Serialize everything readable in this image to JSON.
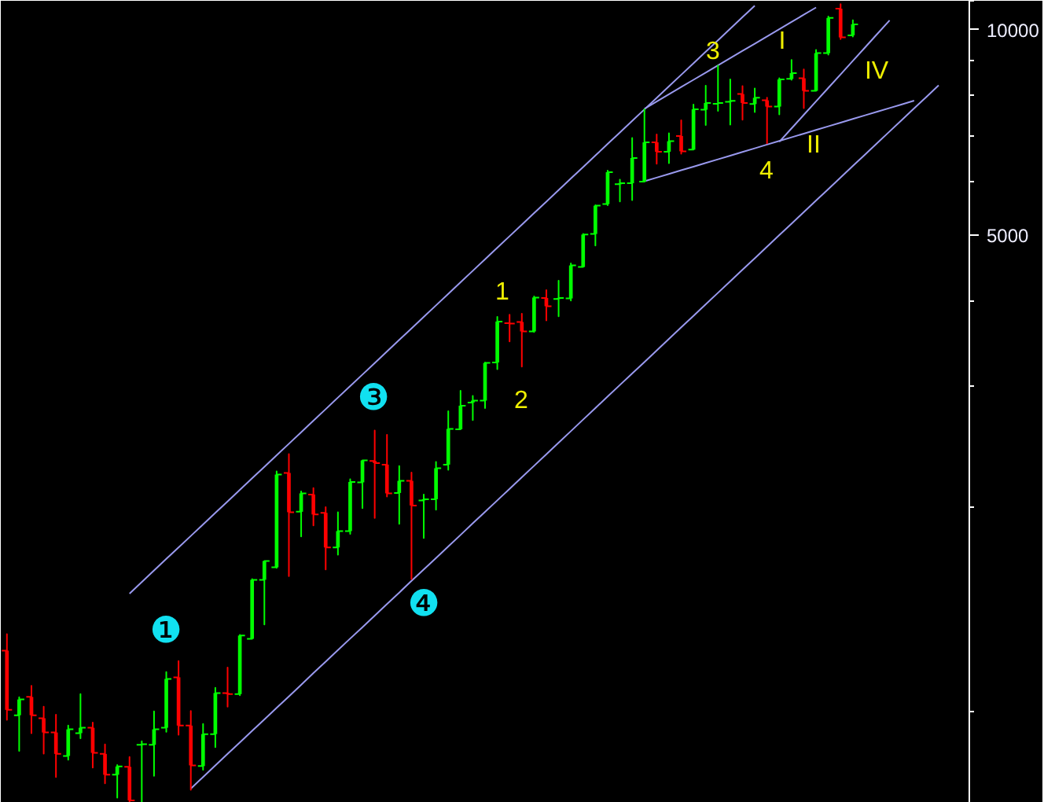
{
  "chart_data": {
    "type": "candlestick",
    "categories": [
      null,
      null,
      null,
      null,
      null,
      null,
      null,
      null,
      null,
      null,
      null,
      null,
      null,
      null,
      null,
      null,
      null,
      null,
      null,
      null,
      null,
      null,
      null,
      null,
      null,
      null,
      null,
      null,
      null,
      null,
      null,
      null,
      null,
      null,
      null,
      null,
      null,
      null,
      null,
      null,
      null,
      null,
      null,
      null,
      null,
      null,
      null,
      null,
      null,
      null,
      null,
      null,
      null,
      null,
      null,
      null,
      null,
      null,
      null,
      null,
      null,
      null,
      null,
      null,
      null,
      null,
      null,
      null,
      null,
      null,
      null,
      null,
      null,
      null,
      null,
      null,
      null,
      null,
      null
    ],
    "ohlc": [
      [
        1230,
        1300,
        974,
        1007
      ],
      [
        989,
        1051,
        877,
        1043
      ],
      [
        1052,
        1092,
        931,
        989
      ],
      [
        979,
        1018,
        869,
        933
      ],
      [
        933,
        991,
        803,
        868
      ],
      [
        862,
        955,
        851,
        943
      ],
      [
        931,
        1062,
        915,
        948
      ],
      [
        948,
        965,
        829,
        871
      ],
      [
        868,
        896,
        786,
        809
      ],
      [
        809,
        836,
        749,
        832
      ],
      [
        831,
        859,
        737,
        742
      ],
      [
        895,
        906,
        737,
        897
      ],
      [
        895,
        1002,
        806,
        943
      ],
      [
        948,
        1144,
        935,
        1118
      ],
      [
        1124,
        1187,
        926,
        955
      ],
      [
        955,
        1003,
        769,
        835
      ],
      [
        833,
        960,
        823,
        928
      ],
      [
        928,
        1085,
        888,
        1066
      ],
      [
        1066,
        1162,
        1018,
        1062
      ],
      [
        1062,
        1297,
        1058,
        1294
      ],
      [
        1280,
        1566,
        1280,
        1562
      ],
      [
        1562,
        1664,
        1343,
        1664
      ],
      [
        1629,
        2252,
        1626,
        2228
      ],
      [
        2240,
        2387,
        1581,
        1962
      ],
      [
        1965,
        2105,
        1808,
        2091
      ],
      [
        2083,
        2128,
        1876,
        1947
      ],
      [
        1958,
        1996,
        1617,
        1742
      ],
      [
        1742,
        1962,
        1700,
        1841
      ],
      [
        1841,
        2193,
        1824,
        2173
      ],
      [
        2170,
        2337,
        1989,
        2337
      ],
      [
        2332,
        2585,
        1924,
        2316
      ],
      [
        2304,
        2548,
        2069,
        2091
      ],
      [
        2094,
        2292,
        1886,
        2181
      ],
      [
        2181,
        2243,
        1566,
        2007
      ],
      [
        2042,
        2083,
        1798,
        2050
      ],
      [
        2050,
        2325,
        1979,
        2276
      ],
      [
        2304,
        2759,
        2264,
        2599
      ],
      [
        2596,
        2956,
        2596,
        2811
      ],
      [
        2841,
        2905,
        2677,
        2859
      ],
      [
        2859,
        3252,
        2789,
        3247
      ],
      [
        3252,
        3794,
        3179,
        3734
      ],
      [
        3714,
        3820,
        3490,
        3708
      ],
      [
        3728,
        3834,
        3206,
        3611
      ],
      [
        3611,
        4064,
        3603,
        4049
      ],
      [
        4043,
        4152,
        3748,
        3931
      ],
      [
        4028,
        4286,
        3800,
        4043
      ],
      [
        4036,
        4543,
        4007,
        4512
      ],
      [
        4488,
        5017,
        4488,
        5007
      ],
      [
        5017,
        5529,
        4824,
        5520
      ],
      [
        5549,
        6213,
        5529,
        6180
      ],
      [
        5933,
        6028,
        5597,
        5955
      ],
      [
        5955,
        6935,
        5626,
        6483
      ],
      [
        5987,
        7642,
        5987,
        6836
      ],
      [
        6836,
        7020,
        6357,
        6622
      ],
      [
        6622,
        7046,
        6370,
        6861
      ],
      [
        6983,
        7363,
        6576,
        6632
      ],
      [
        6668,
        7764,
        6668,
        7642
      ],
      [
        7630,
        8275,
        7247,
        7806
      ],
      [
        7785,
        8853,
        7601,
        7806
      ],
      [
        7835,
        8452,
        7258,
        7860
      ],
      [
        8045,
        8262,
        7375,
        7806
      ],
      [
        7777,
        8200,
        7573,
        7944
      ],
      [
        7876,
        7944,
        6811,
        7711
      ],
      [
        7711,
        8484,
        7509,
        8452
      ],
      [
        8466,
        9023,
        8439,
        8634
      ],
      [
        8484,
        8740,
        7670,
        8131
      ],
      [
        8131,
        9334,
        8131,
        9235
      ],
      [
        9235,
        10450,
        9186,
        10400
      ],
      [
        10730,
        10900,
        9686,
        9738
      ],
      [
        9805,
        10320,
        9769,
        10180
      ],
      null,
      null,
      null,
      null,
      null,
      null,
      null,
      null,
      null
    ],
    "colors": [
      "#ff0000",
      "#00ff00",
      "#ff0000",
      "#ff0000",
      "#ff0000",
      "#00ff00",
      "#00ff00",
      "#ff0000",
      "#ff0000",
      "#00ff00",
      "#ff0000",
      "#00ff00",
      "#00ff00",
      "#00ff00",
      "#ff0000",
      "#ff0000",
      "#00ff00",
      "#00ff00",
      "#ff0000",
      "#00ff00",
      "#00ff00",
      "#00ff00",
      "#00ff00",
      "#ff0000",
      "#00ff00",
      "#ff0000",
      "#ff0000",
      "#00ff00",
      "#00ff00",
      "#00ff00",
      "#ff0000",
      "#ff0000",
      "#00ff00",
      "#ff0000",
      "#00ff00",
      "#00ff00",
      "#00ff00",
      "#00ff00",
      "#00ff00",
      "#00ff00",
      "#00ff00",
      "#ff0000",
      "#ff0000",
      "#00ff00",
      "#ff0000",
      "#00ff00",
      "#00ff00",
      "#00ff00",
      "#00ff00",
      "#00ff00",
      "#00ff00",
      "#00ff00",
      "#00ff00",
      "#ff0000",
      "#00ff00",
      "#ff0000",
      "#00ff00",
      "#00ff00",
      "#00ff00",
      "#00ff00",
      "#ff0000",
      "#00ff00",
      "#ff0000",
      "#00ff00",
      "#00ff00",
      "#ff0000",
      "#00ff00",
      "#00ff00",
      "#ff0000",
      "#00ff00",
      null,
      null,
      null,
      null,
      null,
      null,
      null,
      null,
      null
    ],
    "log": true,
    "ylim": [
      736,
      11020
    ],
    "yticks": [
      {
        "value": 1000,
        "label": null
      },
      {
        "value": 2000,
        "label": null
      },
      {
        "value": 3000,
        "label": null
      },
      {
        "value": 4000,
        "label": null
      },
      5000,
      {
        "value": 6000,
        "label": null
      },
      {
        "value": 7000,
        "label": null
      },
      {
        "value": 8000,
        "label": null
      },
      {
        "value": 9000,
        "label": null
      },
      10000,
      {
        "value": 11000,
        "label": null
      }
    ],
    "tick_labels": "y",
    "series": [
      {
        "type": "line",
        "color": "#9999ee",
        "values": [
          null,
          null,
          null,
          null,
          null,
          null,
          null,
          null,
          null,
          null,
          1491,
          1550,
          1612,
          1676,
          1742,
          1811,
          1883,
          1958,
          2035,
          2116,
          2200,
          2287,
          2378,
          2472,
          2570,
          2672,
          2778,
          2889,
          3003,
          3122,
          3246,
          3375,
          3509,
          3648,
          3793,
          3943,
          4100,
          4262,
          4431,
          4607,
          4790,
          4980,
          5177,
          5383,
          5596,
          5818,
          6049,
          6289,
          6538,
          6798,
          7067,
          7348,
          7639,
          7942,
          8257,
          8585,
          8925,
          9279,
          9647,
          10030,
          10428,
          10841,
          null,
          null,
          null,
          null,
          null,
          null,
          null,
          null,
          null,
          null,
          null,
          null,
          null,
          null,
          null,
          null,
          null
        ]
      },
      {
        "type": "line",
        "color": "#9999ee",
        "values": [
          null,
          null,
          null,
          null,
          null,
          null,
          null,
          null,
          null,
          null,
          null,
          null,
          null,
          null,
          null,
          772,
          803,
          835,
          868,
          902,
          938,
          975,
          1014,
          1054,
          1096,
          1140,
          1185,
          1232,
          1281,
          1331,
          1384,
          1439,
          1496,
          1556,
          1617,
          1681,
          1748,
          1817,
          1890,
          1964,
          2042,
          2123,
          2207,
          2295,
          2386,
          2481,
          2579,
          2682,
          2788,
          2899,
          3014,
          3133,
          3257,
          3387,
          3521,
          3661,
          3806,
          3957,
          4114,
          4277,
          4447,
          4623,
          4806,
          4997,
          5195,
          5401,
          5616,
          5838,
          6070,
          6311,
          6561,
          6821,
          7092,
          7373,
          7665,
          7969,
          8285,
          null,
          null
        ]
      },
      {
        "type": "line",
        "color": "#9999ee",
        "values": [
          null,
          null,
          null,
          null,
          null,
          null,
          null,
          null,
          null,
          null,
          null,
          null,
          null,
          null,
          null,
          null,
          null,
          null,
          null,
          null,
          null,
          null,
          null,
          null,
          null,
          null,
          null,
          null,
          null,
          null,
          null,
          null,
          null,
          null,
          null,
          null,
          null,
          null,
          null,
          null,
          null,
          null,
          null,
          null,
          null,
          null,
          null,
          null,
          null,
          null,
          null,
          null,
          5993,
          6068,
          6143,
          6220,
          6297,
          6376,
          6455,
          6535,
          6617,
          6699,
          6783,
          6867,
          6952,
          7039,
          7127,
          7215,
          7305,
          7396,
          7488,
          7581,
          7675,
          7770,
          7867,
          null,
          null,
          null,
          null
        ]
      },
      {
        "type": "line",
        "color": "#9999ee",
        "values": [
          null,
          null,
          null,
          null,
          null,
          null,
          null,
          null,
          null,
          null,
          null,
          null,
          null,
          null,
          null,
          null,
          null,
          null,
          null,
          null,
          null,
          null,
          null,
          null,
          null,
          null,
          null,
          null,
          null,
          null,
          null,
          null,
          null,
          null,
          null,
          null,
          null,
          null,
          null,
          null,
          null,
          null,
          null,
          null,
          null,
          null,
          null,
          null,
          null,
          null,
          null,
          null,
          7656,
          7845,
          8039,
          8238,
          8441,
          8650,
          8863,
          9082,
          9306,
          9536,
          9772,
          10013,
          10261,
          10514,
          10774,
          null,
          null,
          null,
          null,
          null,
          null,
          null,
          null,
          null,
          null,
          null,
          null
        ]
      },
      {
        "type": "line",
        "color": "#9999ee",
        "values": [
          null,
          null,
          null,
          null,
          null,
          null,
          null,
          null,
          null,
          null,
          null,
          null,
          null,
          null,
          null,
          null,
          null,
          null,
          null,
          null,
          null,
          null,
          null,
          null,
          null,
          null,
          null,
          null,
          null,
          null,
          null,
          null,
          null,
          null,
          null,
          null,
          null,
          null,
          null,
          null,
          null,
          null,
          null,
          null,
          null,
          null,
          null,
          null,
          null,
          null,
          null,
          null,
          null,
          null,
          null,
          null,
          null,
          null,
          null,
          null,
          null,
          null,
          null,
          6847,
          7166,
          7500,
          7849,
          8215,
          8597,
          8998,
          9417,
          9857,
          10316,
          null,
          null,
          null,
          null,
          null,
          null
        ]
      }
    ],
    "annotations": [
      "1",
      "2",
      "3",
      "4",
      "I",
      "II",
      "IV",
      "❶",
      "❸",
      "❹"
    ]
  }
}
